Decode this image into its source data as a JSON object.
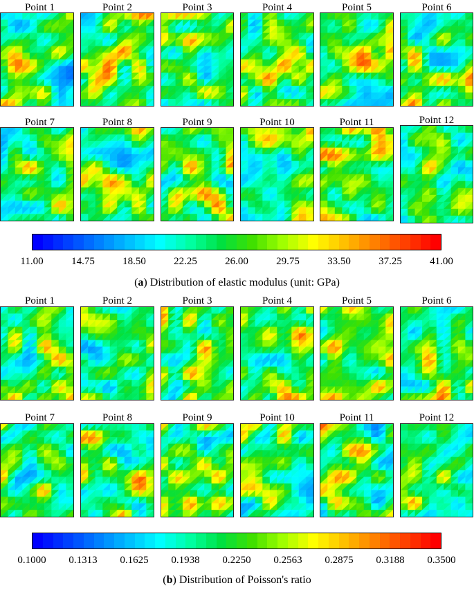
{
  "figure_a": {
    "point_labels": [
      "Point 1",
      "Point 2",
      "Point 3",
      "Point 4",
      "Point 5",
      "Point 6",
      "Point 7",
      "Point 8",
      "Point 9",
      "Point 10",
      "Point 11",
      "Point 12"
    ],
    "colorbar_ticks": [
      "11.00",
      "14.75",
      "18.50",
      "22.25",
      "26.00",
      "29.75",
      "33.50",
      "37.25",
      "41.00"
    ],
    "colorbar_range": [
      11.0,
      41.0
    ],
    "caption_letter": "a",
    "caption_text": "Distribution of elastic modulus (unit: GPa)"
  },
  "figure_b": {
    "point_labels": [
      "Point 1",
      "Point 2",
      "Point 3",
      "Point 4",
      "Point 5",
      "Point 6",
      "Point 7",
      "Point 8",
      "Point 9",
      "Point 10",
      "Point 11",
      "Point 12"
    ],
    "colorbar_ticks": [
      "0.1000",
      "0.1313",
      "0.1625",
      "0.1938",
      "0.2250",
      "0.2563",
      "0.2875",
      "0.3188",
      "0.3500"
    ],
    "colorbar_range": [
      0.1,
      0.35
    ],
    "caption_letter": "b",
    "caption_text": "Distribution of Poisson's ratio"
  },
  "colormap": [
    "#0000ff",
    "#0040ff",
    "#0080ff",
    "#00c0ff",
    "#00ffff",
    "#00ffa0",
    "#00e040",
    "#40e000",
    "#a0ff00",
    "#ffff00",
    "#ffc000",
    "#ff8000",
    "#ff4000",
    "#ff0000"
  ]
}
